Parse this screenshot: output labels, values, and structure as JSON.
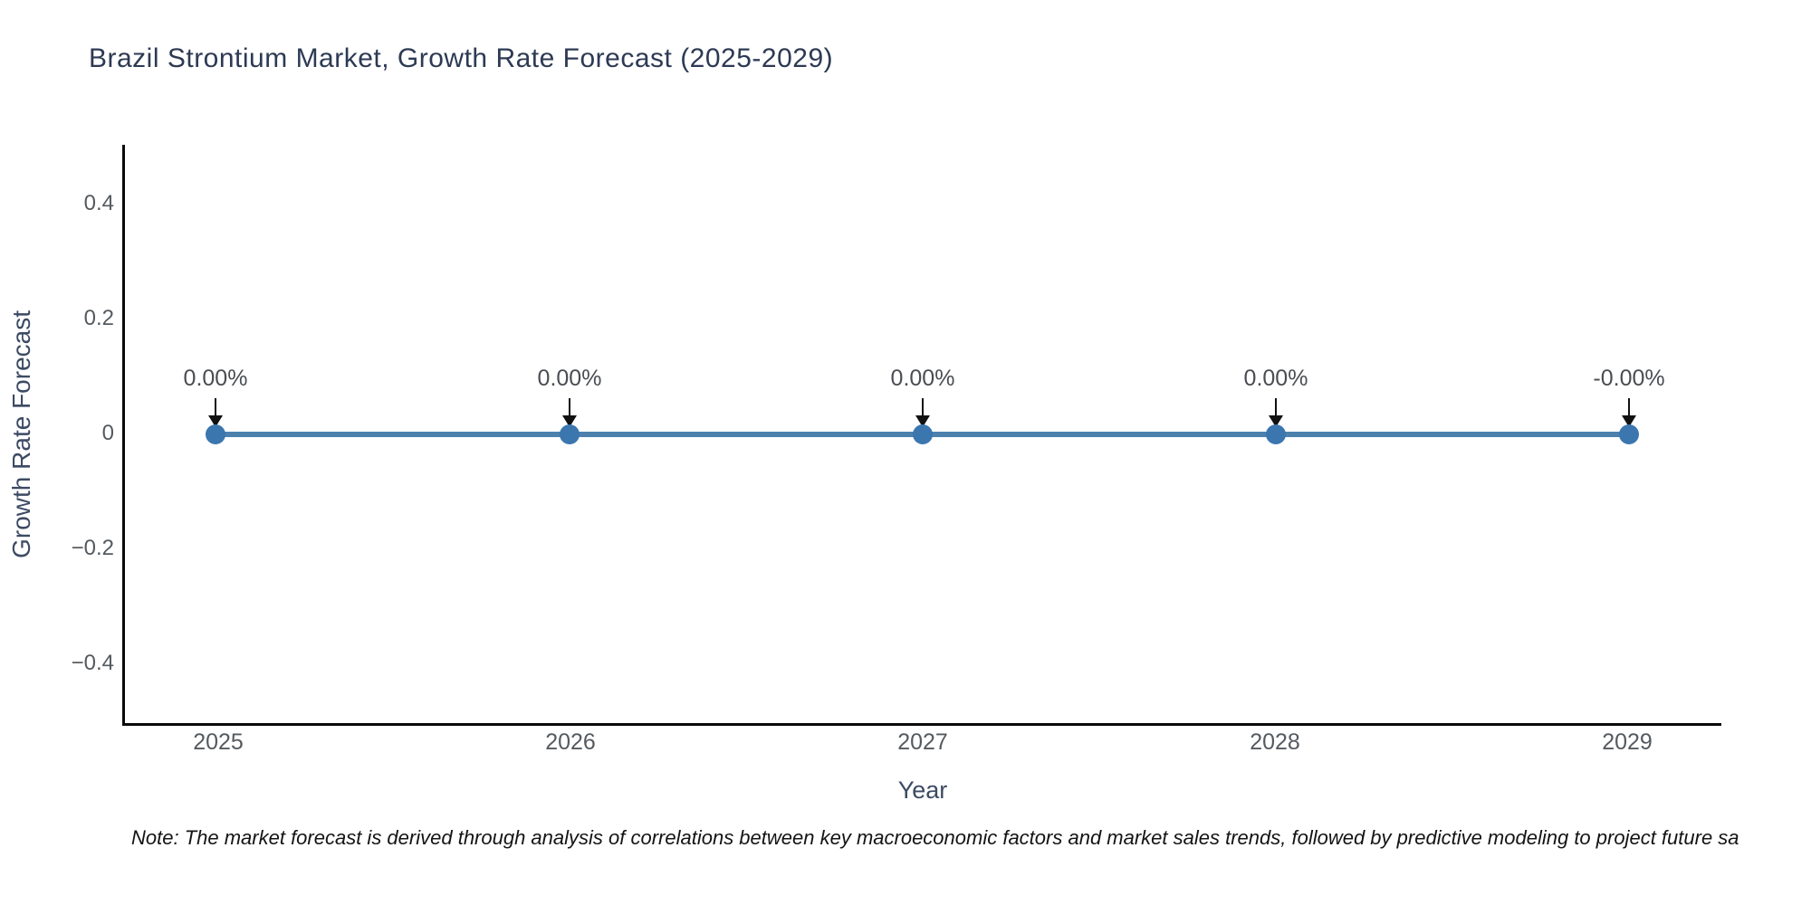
{
  "title": "Brazil Strontium Market, Growth Rate Forecast (2025-2029)",
  "note": "Note: The market forecast is derived through analysis of correlations between key macroeconomic factors and market sales trends, followed by predictive modeling to project future sa",
  "colors": {
    "title": "#2d3a54",
    "axis_spine": "#0a0a0a",
    "tick_label": "#555a5f",
    "axis_label": "#3d4a63",
    "line": "#4d81ad",
    "marker": "#3b76af",
    "annotation_text": "#4a4d52",
    "arrow": "#111111"
  },
  "chart_data": {
    "type": "line",
    "title": "Brazil Strontium Market, Growth Rate Forecast (2025-2029)",
    "xlabel": "Year",
    "ylabel": "Growth Rate Forecast",
    "x": [
      "2025",
      "2026",
      "2027",
      "2028",
      "2029"
    ],
    "values": [
      0,
      0,
      0,
      0,
      0
    ],
    "point_labels": [
      "0.00%",
      "0.00%",
      "0.00%",
      "0.00%",
      "-0.00%"
    ],
    "yticks": [
      "0.4",
      "0.2",
      "0",
      "−0.2",
      "−0.4"
    ],
    "ylim": [
      -0.5,
      0.5
    ],
    "grid": false,
    "legend": false,
    "marker_style": "circle",
    "annotation_arrows": "down"
  }
}
